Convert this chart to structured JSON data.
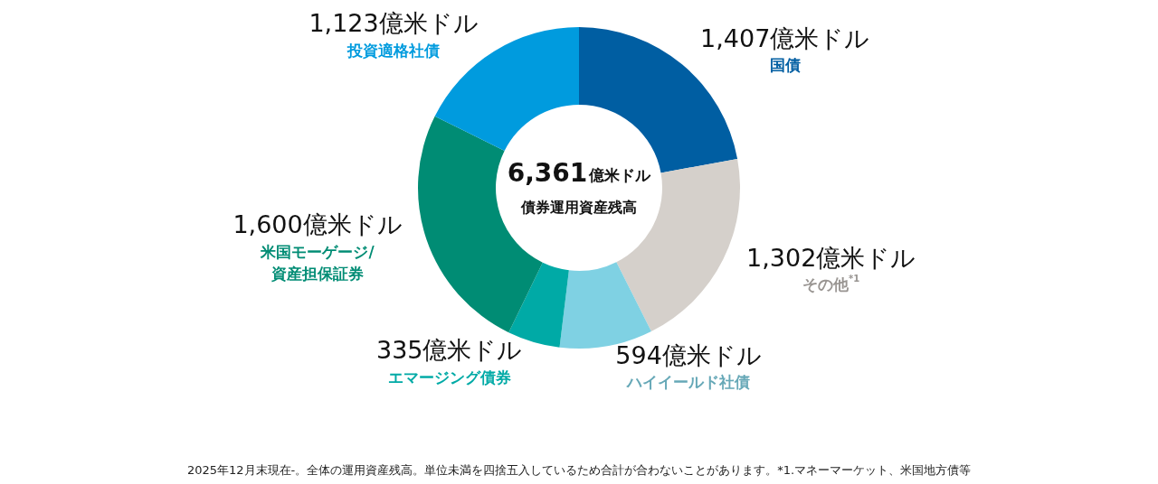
{
  "chart_data": {
    "type": "donut",
    "title": "6,361億米ドル",
    "subtitle": "債券運用資産残高",
    "categories": [
      "国債",
      "その他$^{*1}$",
      "ハイイールド社債",
      "エマージング債券",
      "米国モーゲージ/資産担保証券",
      "投資適格社債"
    ],
    "values": [
      1407,
      1302,
      594,
      335,
      1600,
      1123
    ],
    "value_labels": [
      "1,407億米ドル",
      "1,302億米ドル",
      "594億米ドル",
      "335億米ドル",
      "1,600億米ドル",
      "1,123億米ドル"
    ],
    "colors": [
      "#005ea2",
      "#d5d0cb",
      "#7fd1e3",
      "#00aaa6",
      "#008c74",
      "#009bde"
    ],
    "legend": false,
    "annotations": [
      "2025年12月末現在-。全体の運用資産残高。単位未満を四捨五入しているため合計が合わないことがあります。*1.マネーマーケット、米国地方債等"
    ]
  }
}
